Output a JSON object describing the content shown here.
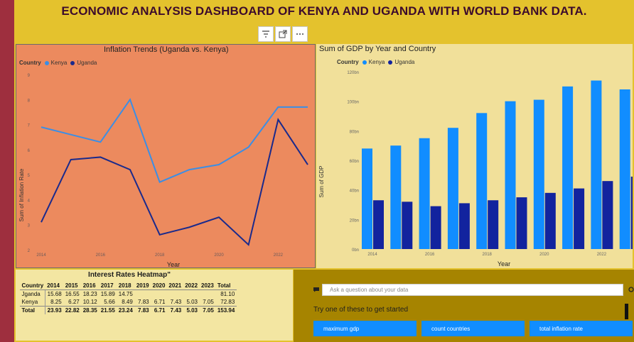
{
  "dashboard": {
    "title": "ECONOMIC ANALYSIS DASHBOARD OF KENYA AND UGANDA WITH WORLD BANK DATA."
  },
  "toolbar": {
    "icons": [
      "filter-icon",
      "focus-mode-icon",
      "more-options-icon"
    ]
  },
  "colors": {
    "kenya": "#3a8ee6",
    "uganda": "#1a2a8c",
    "kenya_bar": "#118dff",
    "uganda_bar": "#12239e"
  },
  "inflation": {
    "title": "Inflation Trends (Uganda vs. Kenya)",
    "legend_title": "Country",
    "legend_items": [
      "Kenya",
      "Uganda"
    ]
  },
  "gdp": {
    "title": "Sum of GDP by Year and Country",
    "legend_title": "Country",
    "legend_items": [
      "Kenya",
      "Uganda"
    ]
  },
  "chart_data": [
    {
      "type": "line",
      "title": "Inflation Trends (Uganda vs. Kenya)",
      "xlabel": "Year",
      "ylabel": "Sum of Inflation Rate",
      "x": [
        2014,
        2015,
        2016,
        2017,
        2018,
        2019,
        2020,
        2021,
        2022,
        2023
      ],
      "x_ticks": [
        "2014",
        "2016",
        "2018",
        "2020",
        "2022"
      ],
      "y_ticks": [
        "2",
        "3",
        "4",
        "5",
        "6",
        "7",
        "8",
        "9"
      ],
      "ylim": [
        2,
        9
      ],
      "legend": "top-left",
      "grid": false,
      "series": [
        {
          "name": "Kenya",
          "values": [
            6.9,
            6.6,
            6.3,
            8.0,
            4.7,
            5.2,
            5.4,
            6.1,
            7.7,
            7.7
          ]
        },
        {
          "name": "Uganda",
          "values": [
            3.1,
            5.6,
            5.7,
            5.2,
            2.6,
            2.9,
            3.3,
            2.2,
            7.2,
            5.4
          ]
        }
      ]
    },
    {
      "type": "bar",
      "title": "Sum of GDP by Year and Country",
      "xlabel": "Year",
      "ylabel": "Sum of GDP",
      "categories": [
        "2014",
        "2015",
        "2016",
        "2017",
        "2018",
        "2019",
        "2020",
        "2021",
        "2022",
        "2023"
      ],
      "x_ticks": [
        "2014",
        "2016",
        "2018",
        "2020",
        "2022"
      ],
      "y_ticks": [
        "0bn",
        "20bn",
        "40bn",
        "60bn",
        "80bn",
        "100bn",
        "120bn"
      ],
      "ylim": [
        0,
        120
      ],
      "legend": "top-left",
      "grid": false,
      "series": [
        {
          "name": "Kenya",
          "values": [
            68,
            70,
            75,
            82,
            92,
            100,
            101,
            110,
            114,
            108
          ]
        },
        {
          "name": "Uganda",
          "values": [
            33,
            32,
            29,
            31,
            33,
            35,
            38,
            41,
            46,
            49
          ]
        }
      ]
    }
  ],
  "heatmap": {
    "title": "Interest Rates Heatmap\"",
    "columns": [
      "Country",
      "2014",
      "2015",
      "2016",
      "2017",
      "2018",
      "2019",
      "2020",
      "2021",
      "2022",
      "2023",
      "Total"
    ],
    "rows": [
      [
        "Jganda",
        "15.68",
        "16.55",
        "18.23",
        "15.89",
        "14.75",
        "",
        "",
        "",
        "",
        "",
        "81.10"
      ],
      [
        "Kenya",
        "8.25",
        "6.27",
        "10.12",
        "5.66",
        "8.49",
        "7.83",
        "6.71",
        "7.43",
        "5.03",
        "7.05",
        "72.83"
      ]
    ],
    "total_row": [
      "Total",
      "23.93",
      "22.82",
      "28.35",
      "21.55",
      "23.24",
      "7.83",
      "6.71",
      "7.43",
      "5.03",
      "7.05",
      "153.94"
    ]
  },
  "qa": {
    "placeholder": "Ask a question about your data",
    "hint": "Try one of these to get started",
    "suggestions": [
      "maximum gdp",
      "count countries",
      "total inflation rate"
    ]
  }
}
